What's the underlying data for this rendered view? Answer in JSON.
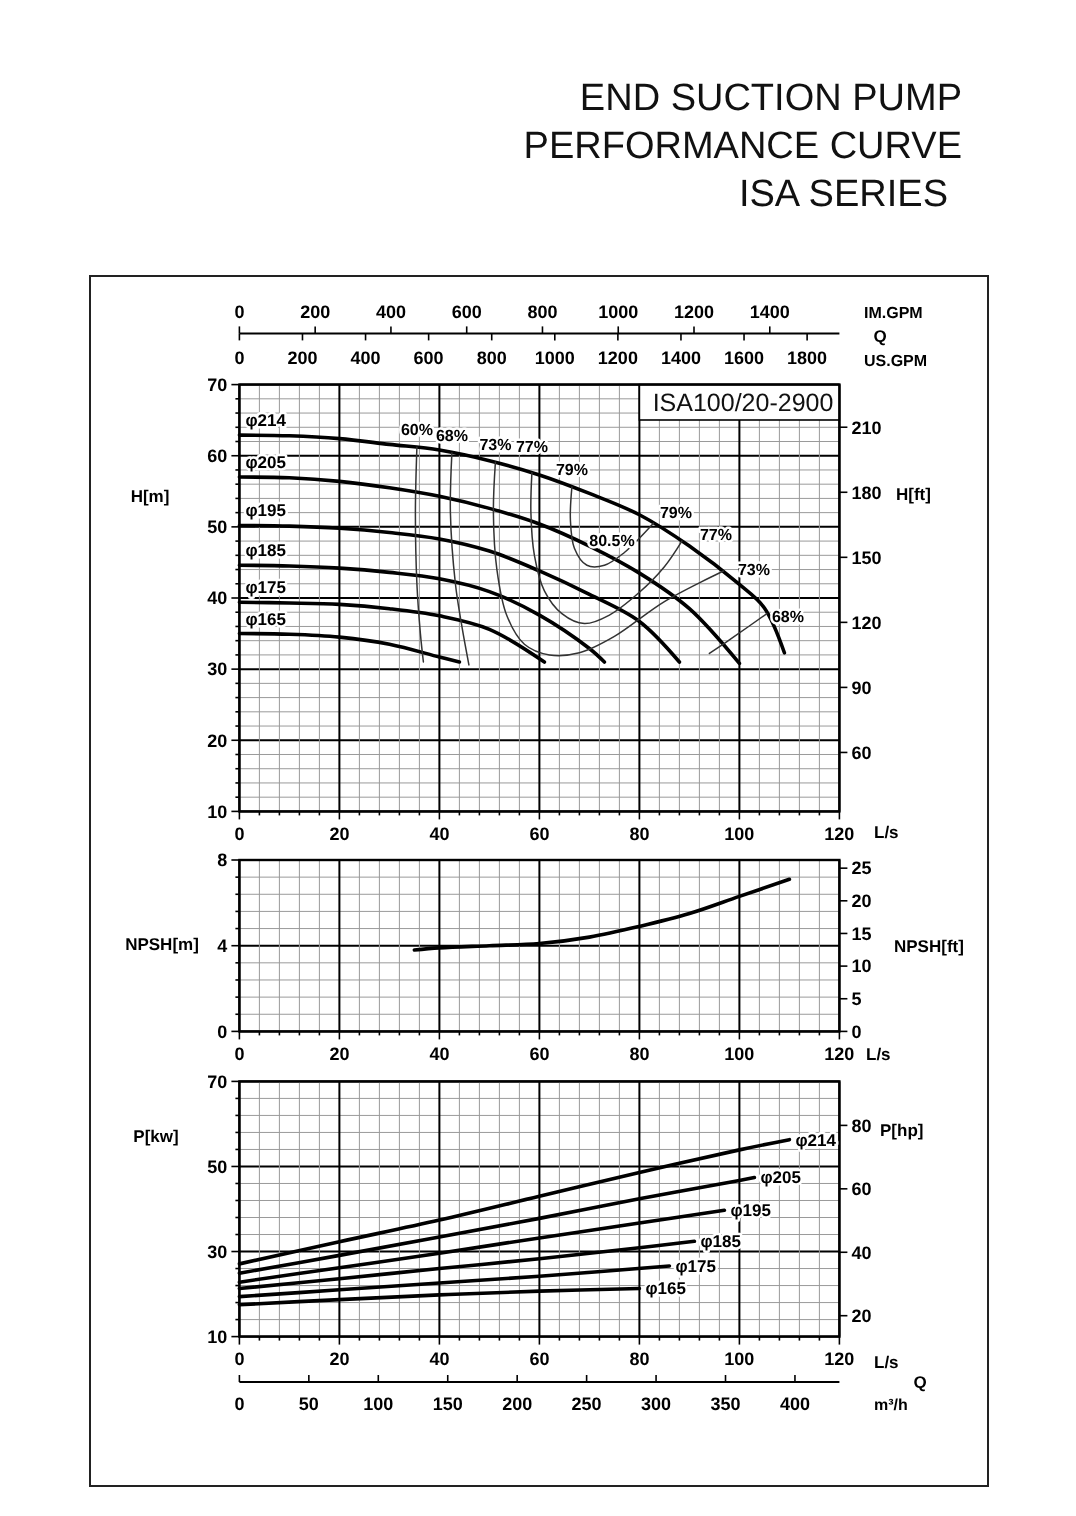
{
  "chart_data": [
    {
      "type": "line",
      "title": "END SUCTION PUMP PERFORMANCE CURVE",
      "subtitle": "ISA SERIES",
      "xlabel": "L/s",
      "ylabel": "H[m]",
      "y2label": "H[ft]",
      "xlim": [
        0,
        120
      ],
      "xticks": [
        0,
        {
          "value": 4,
          "label": null
        },
        {
          "value": 8,
          "label": null
        },
        {
          "value": 12,
          "label": null
        },
        {
          "value": 16,
          "label": null
        },
        20,
        {
          "value": 24,
          "label": null
        },
        {
          "value": 28,
          "label": null
        },
        {
          "value": 32,
          "label": null
        },
        {
          "value": 36,
          "label": null
        },
        40,
        {
          "value": 44,
          "label": null
        },
        {
          "value": 48,
          "label": null
        },
        {
          "value": 52,
          "label": null
        },
        {
          "value": 56,
          "label": null
        },
        60,
        {
          "value": 64,
          "label": null
        },
        {
          "value": 68,
          "label": null
        },
        {
          "value": 72,
          "label": null
        },
        {
          "value": 76,
          "label": null
        },
        80,
        {
          "value": 84,
          "label": null
        },
        {
          "value": 88,
          "label": null
        },
        {
          "value": 92,
          "label": null
        },
        {
          "value": 96,
          "label": null
        },
        100,
        {
          "value": 104,
          "label": null
        },
        {
          "value": 108,
          "label": null
        },
        {
          "value": 112,
          "label": null
        },
        {
          "value": 116,
          "label": null
        },
        120
      ],
      "ylim": [
        10,
        70
      ],
      "yticks": [
        10,
        {
          "value": 12,
          "label": null
        },
        {
          "value": 14,
          "label": null
        },
        {
          "value": 16,
          "label": null
        },
        {
          "value": 18,
          "label": null
        },
        20,
        {
          "value": 22,
          "label": null
        },
        {
          "value": 24,
          "label": null
        },
        {
          "value": 26,
          "label": null
        },
        {
          "value": 28,
          "label": null
        },
        30,
        {
          "value": 32,
          "label": null
        },
        {
          "value": 34,
          "label": null
        },
        {
          "value": 36,
          "label": null
        },
        {
          "value": 38,
          "label": null
        },
        40,
        {
          "value": 42,
          "label": null
        },
        {
          "value": 44,
          "label": null
        },
        {
          "value": 46,
          "label": null
        },
        {
          "value": 48,
          "label": null
        },
        50,
        {
          "value": 52,
          "label": null
        },
        {
          "value": 54,
          "label": null
        },
        {
          "value": 56,
          "label": null
        },
        {
          "value": 58,
          "label": null
        },
        60,
        {
          "value": 62,
          "label": null
        },
        {
          "value": 64,
          "label": null
        },
        {
          "value": 66,
          "label": null
        },
        {
          "value": 68,
          "label": null
        },
        70
      ],
      "y2lim": [
        32.81,
        229.66
      ],
      "y2ticks": [
        60,
        90,
        120,
        150,
        180,
        210
      ],
      "x2label": "IM.GPM",
      "x2lim": [
        0,
        1583.8
      ],
      "x2ticks": [
        0,
        200,
        400,
        600,
        800,
        1000,
        1200,
        1400
      ],
      "grid": true,
      "series": [
        {
          "name": "φ214",
          "color": "#000000",
          "x": [
            0,
            10,
            20,
            30,
            40,
            50,
            60,
            70,
            80,
            90,
            100,
            105,
            109
          ],
          "values": [
            62.9,
            62.8,
            62.4,
            61.6,
            60.8,
            59.3,
            57.3,
            54.7,
            51.7,
            47.3,
            41.9,
            38.6,
            32.3
          ]
        },
        {
          "name": "φ205",
          "color": "#000000",
          "x": [
            0,
            10,
            20,
            30,
            40,
            50,
            60,
            70,
            80,
            90,
            100
          ],
          "values": [
            57,
            56.9,
            56.4,
            55.5,
            54.3,
            52.6,
            50.4,
            47.3,
            43.5,
            38.5,
            30.8
          ]
        },
        {
          "name": "φ195",
          "color": "#000000",
          "x": [
            0,
            10,
            20,
            30,
            40,
            50,
            60,
            70,
            80,
            88
          ],
          "values": [
            50.2,
            50.1,
            49.8,
            49.2,
            48.3,
            46.6,
            43.8,
            40.5,
            36.7,
            31
          ]
        },
        {
          "name": "φ185",
          "color": "#000000",
          "x": [
            0,
            10,
            20,
            30,
            40,
            50,
            60,
            70,
            73
          ],
          "values": [
            44.6,
            44.5,
            44.2,
            43.6,
            42.7,
            40.9,
            37.6,
            32.9,
            31
          ]
        },
        {
          "name": "φ175",
          "color": "#000000",
          "x": [
            0,
            10,
            20,
            30,
            40,
            50,
            61
          ],
          "values": [
            39.4,
            39.3,
            39.1,
            38.5,
            37.5,
            35.6,
            31
          ]
        },
        {
          "name": "φ165",
          "color": "#000000",
          "x": [
            0,
            10,
            20,
            30,
            40,
            44
          ],
          "values": [
            35,
            34.9,
            34.5,
            33.5,
            31.7,
            31
          ]
        },
        {
          "name": "60%",
          "color": "#333333",
          "x": [
            35.5,
            35.2,
            35.5,
            36.2,
            36.8
          ],
          "values": [
            61.2,
            52,
            42,
            35,
            31
          ]
        },
        {
          "name": "68%",
          "color": "#333333",
          "x": [
            42.5,
            42.2,
            43.2,
            44.5,
            45.9
          ],
          "values": [
            60.4,
            52,
            42,
            36,
            30.6
          ]
        },
        {
          "color": "#333333",
          "x": [
            94,
            99,
            105.5
          ],
          "values": [
            32.2,
            34.6,
            37.8
          ]
        },
        {
          "name": "73%",
          "color": "#333333",
          "x": [
            51.2,
            50.8,
            51.5,
            53.5,
            57,
            62,
            68,
            75,
            85,
            96.8
          ],
          "values": [
            59.1,
            52,
            44,
            37.5,
            33.5,
            32,
            32.3,
            34.6,
            39.5,
            43.8
          ]
        },
        {
          "name": "77%",
          "color": "#333333",
          "x": [
            58.5,
            58.3,
            59,
            61,
            64.5,
            69,
            74,
            80,
            85,
            88.5
          ],
          "values": [
            57.6,
            52,
            46,
            41,
            37.8,
            36.4,
            37.6,
            40.8,
            44.4,
            48
          ]
        },
        {
          "name": "79%",
          "color": "#333333",
          "x": [
            66.5,
            66.2,
            67,
            69.5,
            73,
            77,
            80,
            82.8
          ],
          "values": [
            55.6,
            51,
            47,
            44.6,
            44.6,
            46.4,
            48.4,
            50.5
          ]
        }
      ],
      "annotations": [
        "ISA100/20-2900",
        "Q",
        "US.GPM",
        "0",
        "200",
        "400",
        "600",
        "800",
        "1000",
        "1200",
        "1400",
        "1600",
        "1800",
        "80.5%",
        "79%",
        "77%",
        "73%",
        "68%"
      ]
    },
    {
      "type": "line",
      "xlabel": "L/s",
      "ylabel": "NPSH[m]",
      "y2label": "NPSH[ft]",
      "xlim": [
        0,
        120
      ],
      "xticks": [
        0,
        {
          "value": 4,
          "label": null
        },
        {
          "value": 8,
          "label": null
        },
        {
          "value": 12,
          "label": null
        },
        {
          "value": 16,
          "label": null
        },
        20,
        {
          "value": 24,
          "label": null
        },
        {
          "value": 28,
          "label": null
        },
        {
          "value": 32,
          "label": null
        },
        {
          "value": 36,
          "label": null
        },
        40,
        {
          "value": 44,
          "label": null
        },
        {
          "value": 48,
          "label": null
        },
        {
          "value": 52,
          "label": null
        },
        {
          "value": 56,
          "label": null
        },
        60,
        {
          "value": 64,
          "label": null
        },
        {
          "value": 68,
          "label": null
        },
        {
          "value": 72,
          "label": null
        },
        {
          "value": 76,
          "label": null
        },
        80,
        {
          "value": 84,
          "label": null
        },
        {
          "value": 88,
          "label": null
        },
        {
          "value": 92,
          "label": null
        },
        {
          "value": 96,
          "label": null
        },
        100,
        {
          "value": 104,
          "label": null
        },
        {
          "value": 108,
          "label": null
        },
        {
          "value": 112,
          "label": null
        },
        {
          "value": 116,
          "label": null
        },
        120
      ],
      "ylim": [
        0,
        8
      ],
      "yticks": [
        0,
        {
          "value": 0.8,
          "label": null
        },
        {
          "value": 1.6,
          "label": null
        },
        {
          "value": 2.4,
          "label": null
        },
        {
          "value": 3.2,
          "label": null
        },
        4,
        {
          "value": 4.8,
          "label": null
        },
        {
          "value": 5.6,
          "label": null
        },
        {
          "value": 6.4,
          "label": null
        },
        {
          "value": 7.2,
          "label": null
        },
        8
      ],
      "y2lim": [
        0,
        26.25
      ],
      "y2ticks": [
        0,
        5,
        10,
        15,
        20,
        25
      ],
      "grid": true,
      "series": [
        {
          "color": "#000000",
          "x": [
            35,
            40,
            50,
            60,
            70,
            80,
            90,
            100,
            110
          ],
          "values": [
            3.8,
            3.9,
            4,
            4.1,
            4.4,
            4.9,
            5.5,
            6.3,
            7.1
          ]
        }
      ]
    },
    {
      "type": "line",
      "xlabel": "L/s",
      "ylabel": "P[kw]",
      "y2label": "P[hp]",
      "x2label": "m³/h",
      "xlim": [
        0,
        120
      ],
      "xticks": [
        0,
        {
          "value": 4,
          "label": null
        },
        {
          "value": 8,
          "label": null
        },
        {
          "value": 12,
          "label": null
        },
        {
          "value": 16,
          "label": null
        },
        20,
        {
          "value": 24,
          "label": null
        },
        {
          "value": 28,
          "label": null
        },
        {
          "value": 32,
          "label": null
        },
        {
          "value": 36,
          "label": null
        },
        40,
        {
          "value": 44,
          "label": null
        },
        {
          "value": 48,
          "label": null
        },
        {
          "value": 52,
          "label": null
        },
        {
          "value": 56,
          "label": null
        },
        60,
        {
          "value": 64,
          "label": null
        },
        {
          "value": 68,
          "label": null
        },
        {
          "value": 72,
          "label": null
        },
        {
          "value": 76,
          "label": null
        },
        80,
        {
          "value": 84,
          "label": null
        },
        {
          "value": 88,
          "label": null
        },
        {
          "value": 92,
          "label": null
        },
        {
          "value": 96,
          "label": null
        },
        100,
        {
          "value": 104,
          "label": null
        },
        {
          "value": 108,
          "label": null
        },
        {
          "value": 112,
          "label": null
        },
        {
          "value": 116,
          "label": null
        },
        120
      ],
      "ylim": [
        10,
        70
      ],
      "yticks": [
        10,
        {
          "value": 14,
          "label": null
        },
        {
          "value": 18,
          "label": null
        },
        {
          "value": 22,
          "label": null
        },
        {
          "value": 26,
          "label": null
        },
        30,
        {
          "value": 34,
          "label": null
        },
        {
          "value": 38,
          "label": null
        },
        {
          "value": 42,
          "label": null
        },
        {
          "value": 46,
          "label": null
        },
        50,
        {
          "value": 54,
          "label": null
        },
        {
          "value": 58,
          "label": null
        },
        {
          "value": 62,
          "label": null
        },
        {
          "value": 66,
          "label": null
        },
        70
      ],
      "y2lim": [
        13.41,
        93.87
      ],
      "y2ticks": [
        20,
        40,
        60,
        80
      ],
      "x2lim": [
        0,
        432
      ],
      "x2ticks": [
        0,
        50,
        100,
        150,
        200,
        250,
        300,
        350,
        400
      ],
      "grid": true,
      "series": [
        {
          "name": "φ214",
          "color": "#000000",
          "x": [
            0,
            20,
            40,
            60,
            80,
            100,
            110
          ],
          "values": [
            27.1,
            32.3,
            37.4,
            43,
            48.6,
            53.9,
            56.3
          ]
        },
        {
          "name": "φ205",
          "color": "#000000",
          "x": [
            0,
            20,
            40,
            60,
            80,
            100,
            103
          ],
          "values": [
            24.9,
            29.1,
            33.4,
            37.8,
            42.4,
            46.7,
            47.4
          ]
        },
        {
          "name": "φ195",
          "color": "#000000",
          "x": [
            0,
            20,
            40,
            60,
            80,
            97
          ],
          "values": [
            22.8,
            26.2,
            29.6,
            33.2,
            36.7,
            39.7
          ]
        },
        {
          "name": "φ185",
          "color": "#000000",
          "x": [
            0,
            20,
            40,
            60,
            80,
            91
          ],
          "values": [
            21.3,
            23.6,
            26,
            28.3,
            30.9,
            32.4
          ]
        },
        {
          "name": "φ175",
          "color": "#000000",
          "x": [
            0,
            20,
            40,
            60,
            86
          ],
          "values": [
            19.4,
            21,
            22.6,
            24.2,
            26.6
          ]
        },
        {
          "name": "φ165",
          "color": "#000000",
          "x": [
            0,
            20,
            40,
            60,
            80
          ],
          "values": [
            17.5,
            18.7,
            19.8,
            20.7,
            21.3
          ]
        }
      ],
      "annotations": [
        "Q"
      ]
    }
  ]
}
